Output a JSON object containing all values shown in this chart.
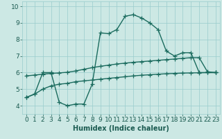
{
  "title": "",
  "xlabel": "Humidex (Indice chaleur)",
  "xlim": [
    -0.5,
    23.5
  ],
  "ylim": [
    3.5,
    10.3
  ],
  "bg_color": "#cce8e4",
  "grid_color": "#99cccc",
  "line_color": "#1a6b5e",
  "line1_x": [
    0,
    1,
    2,
    3,
    4,
    5,
    6,
    7,
    8,
    9,
    10,
    11,
    12,
    13,
    14,
    15,
    16,
    17,
    18,
    19,
    20,
    21,
    22,
    23
  ],
  "line1_y": [
    4.5,
    4.7,
    6.0,
    6.0,
    4.2,
    4.0,
    4.1,
    4.1,
    5.3,
    8.4,
    8.35,
    8.6,
    9.4,
    9.5,
    9.3,
    9.0,
    8.6,
    7.3,
    7.0,
    7.2,
    7.2,
    6.0,
    6.0,
    6.0
  ],
  "line2_x": [
    0,
    1,
    2,
    3,
    4,
    5,
    6,
    7,
    8,
    9,
    10,
    11,
    12,
    13,
    14,
    15,
    16,
    17,
    18,
    19,
    20,
    21,
    22,
    23
  ],
  "line2_y": [
    5.8,
    5.85,
    5.9,
    5.95,
    5.98,
    6.02,
    6.1,
    6.2,
    6.3,
    6.38,
    6.45,
    6.52,
    6.57,
    6.62,
    6.66,
    6.7,
    6.74,
    6.78,
    6.82,
    6.86,
    6.9,
    6.9,
    6.05,
    6.0
  ],
  "line3_x": [
    0,
    1,
    2,
    3,
    4,
    5,
    6,
    7,
    8,
    9,
    10,
    11,
    12,
    13,
    14,
    15,
    16,
    17,
    18,
    19,
    20,
    21,
    22,
    23
  ],
  "line3_y": [
    4.5,
    4.7,
    5.0,
    5.2,
    5.3,
    5.35,
    5.45,
    5.5,
    5.55,
    5.6,
    5.65,
    5.7,
    5.75,
    5.8,
    5.84,
    5.87,
    5.9,
    5.93,
    5.95,
    5.97,
    5.98,
    5.99,
    6.0,
    6.0
  ],
  "yticks": [
    4,
    5,
    6,
    7,
    8,
    9,
    10
  ],
  "xlabel_fontsize": 7,
  "tick_fontsize": 6.5,
  "linewidth": 1.0,
  "markersize": 4,
  "markeredgewidth": 0.9
}
